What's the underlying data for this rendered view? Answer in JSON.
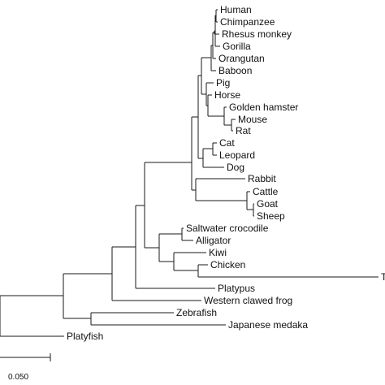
{
  "tree": {
    "scale_bar_label": "0.050",
    "leaves": [
      {
        "id": "human",
        "label": "Human"
      },
      {
        "id": "chimpanzee",
        "label": "Chimpanzee"
      },
      {
        "id": "rhesus-monkey",
        "label": "Rhesus monkey"
      },
      {
        "id": "gorilla",
        "label": "Gorilla"
      },
      {
        "id": "orangutan",
        "label": "Orangutan"
      },
      {
        "id": "baboon",
        "label": "Baboon"
      },
      {
        "id": "pig",
        "label": "Pig"
      },
      {
        "id": "horse",
        "label": "Horse"
      },
      {
        "id": "golden-hamster",
        "label": "Golden hamster"
      },
      {
        "id": "mouse",
        "label": "Mouse"
      },
      {
        "id": "rat",
        "label": "Rat"
      },
      {
        "id": "cat",
        "label": "Cat"
      },
      {
        "id": "leopard",
        "label": "Leopard"
      },
      {
        "id": "dog",
        "label": "Dog"
      },
      {
        "id": "rabbit",
        "label": "Rabbit"
      },
      {
        "id": "cattle",
        "label": "Cattle"
      },
      {
        "id": "goat",
        "label": "Goat"
      },
      {
        "id": "sheep",
        "label": "Sheep"
      },
      {
        "id": "saltwater-crocodile",
        "label": "Saltwater crocodile"
      },
      {
        "id": "alligator",
        "label": "Alligator"
      },
      {
        "id": "kiwi",
        "label": "Kiwi"
      },
      {
        "id": "chicken",
        "label": "Chicken"
      },
      {
        "id": "truncated",
        "label": "Ti"
      },
      {
        "id": "platypus",
        "label": "Platypus"
      },
      {
        "id": "western-clawed-frog",
        "label": "Western clawed frog"
      },
      {
        "id": "zebrafish",
        "label": "Zebrafish"
      },
      {
        "id": "japanese-medaka",
        "label": "Japanese medaka"
      },
      {
        "id": "platyfish",
        "label": "Platyfish"
      }
    ]
  }
}
